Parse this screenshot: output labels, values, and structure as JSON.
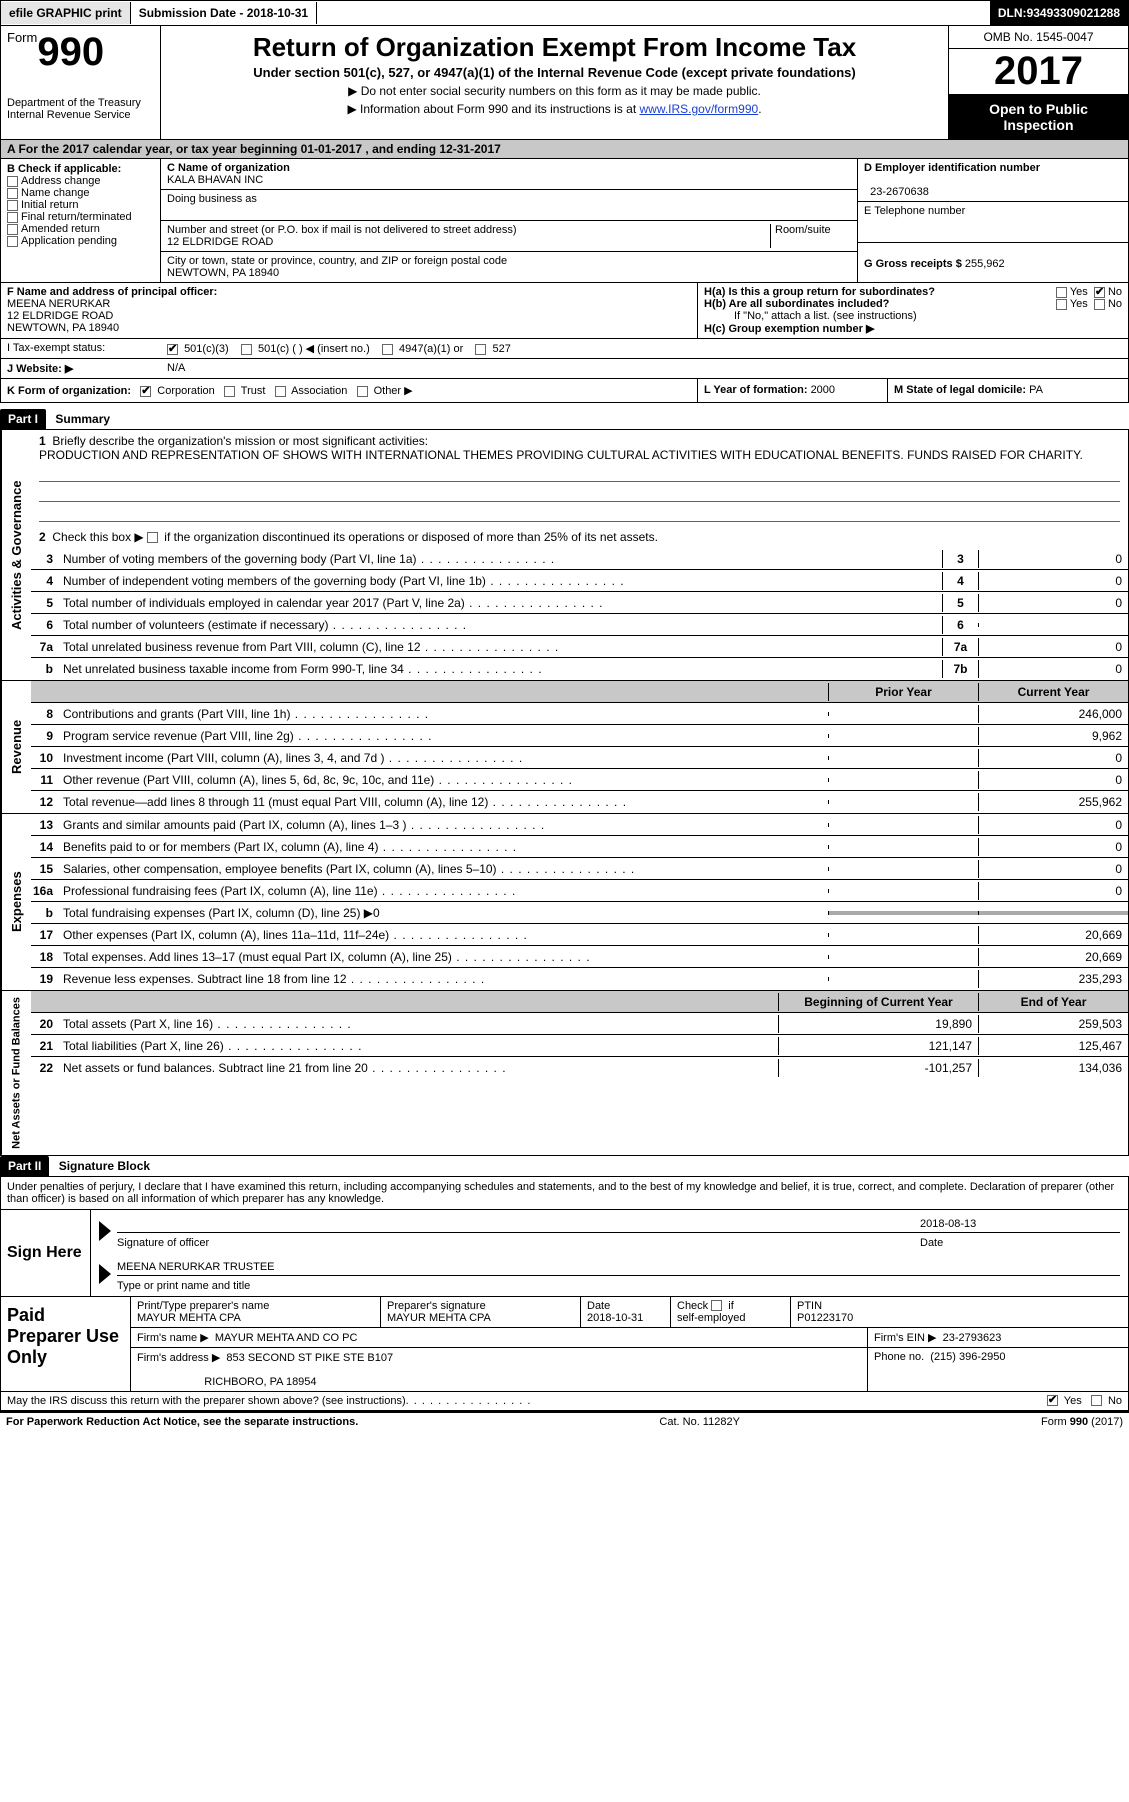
{
  "topbar": {
    "efile": "efile GRAPHIC print",
    "submission_label": "Submission Date - ",
    "submission_date": "2018-10-31",
    "dln_label": "DLN: ",
    "dln": "93493309021288"
  },
  "header": {
    "form_word": "Form",
    "form_num": "990",
    "dept1": "Department of the Treasury",
    "dept2": "Internal Revenue Service",
    "title": "Return of Organization Exempt From Income Tax",
    "subtitle": "Under section 501(c), 527, or 4947(a)(1) of the Internal Revenue Code (except private foundations)",
    "note1": "▶ Do not enter social security numbers on this form as it may be made public.",
    "note2_pre": "▶ Information about Form 990 and its instructions is at ",
    "note2_link": "www.IRS.gov/form990",
    "omb": "OMB No. 1545-0047",
    "year": "2017",
    "open": "Open to Public Inspection"
  },
  "row_a": {
    "text_pre": "A   For the 2017 calendar year, or tax year beginning ",
    "begin": "01-01-2017",
    "mid": "   , and ending ",
    "end": "12-31-2017"
  },
  "col_b": {
    "label": "B Check if applicable:",
    "opts": [
      "Address change",
      "Name change",
      "Initial return",
      "Final return/terminated",
      "Amended return",
      "Application pending"
    ]
  },
  "col_c": {
    "name_label": "C Name of organization",
    "name": "KALA BHAVAN INC",
    "dba_label": "Doing business as",
    "addr_label": "Number and street (or P.O. box if mail is not delivered to street address)",
    "room_label": "Room/suite",
    "addr": "12 ELDRIDGE ROAD",
    "city_label": "City or town, state or province, country, and ZIP or foreign postal code",
    "city": "NEWTOWN, PA  18940"
  },
  "col_d": {
    "ein_label": "D Employer identification number",
    "ein": "23-2670638",
    "tel_label": "E Telephone number",
    "gross_label": "G Gross receipts $ ",
    "gross": "255,962"
  },
  "section_f": {
    "label": "F Name and address of principal officer:",
    "name": "MEENA NERURKAR",
    "addr1": "12 ELDRIDGE ROAD",
    "addr2": "NEWTOWN, PA  18940",
    "ha": "H(a)  Is this a group return for subordinates?",
    "hb": "H(b)  Are all subordinates included?",
    "hb_note": "If \"No,\" attach a list. (see instructions)",
    "hc": "H(c)  Group exemption number ▶",
    "yes": "Yes",
    "no": "No"
  },
  "tax_exempt": {
    "label": "I   Tax-exempt status:",
    "o1": "501(c)(3)",
    "o2": "501(c) (  ) ◀ (insert no.)",
    "o3": "4947(a)(1) or",
    "o4": "527"
  },
  "website": {
    "label": "J   Website: ▶",
    "val": "N/A"
  },
  "row_k": {
    "left_label": "K Form of organization:",
    "opts": [
      "Corporation",
      "Trust",
      "Association",
      "Other ▶"
    ],
    "mid_label": "L Year of formation: ",
    "mid_val": "2000",
    "right_label": "M State of legal domicile: ",
    "right_val": "PA"
  },
  "part1": {
    "hdr": "Part I",
    "title": "Summary",
    "q1_label": "1",
    "q1": "Briefly describe the organization's mission or most significant activities:",
    "q1_text": "PRODUCTION AND REPRESENTATION OF SHOWS WITH INTERNATIONAL THEMES PROVIDING CULTURAL ACTIVITIES WITH EDUCATIONAL BENEFITS. FUNDS RAISED FOR CHARITY.",
    "q2_label": "2",
    "q2": "Check this box ▶       if the organization discontinued its operations or disposed of more than 25% of its net assets."
  },
  "gov_rows": [
    {
      "n": "3",
      "d": "Number of voting members of the governing body (Part VI, line 1a)",
      "c": "3",
      "v": "0"
    },
    {
      "n": "4",
      "d": "Number of independent voting members of the governing body (Part VI, line 1b)",
      "c": "4",
      "v": "0"
    },
    {
      "n": "5",
      "d": "Total number of individuals employed in calendar year 2017 (Part V, line 2a)",
      "c": "5",
      "v": "0"
    },
    {
      "n": "6",
      "d": "Total number of volunteers (estimate if necessary)",
      "c": "6",
      "v": ""
    },
    {
      "n": "7a",
      "d": "Total unrelated business revenue from Part VIII, column (C), line 12",
      "c": "7a",
      "v": "0"
    },
    {
      "n": "b",
      "d": "Net unrelated business taxable income from Form 990-T, line 34",
      "c": "7b",
      "v": "0"
    }
  ],
  "rev_hdr": {
    "prior": "Prior Year",
    "current": "Current Year"
  },
  "rev_rows": [
    {
      "n": "8",
      "d": "Contributions and grants (Part VIII, line 1h)",
      "p": "",
      "c": "246,000"
    },
    {
      "n": "9",
      "d": "Program service revenue (Part VIII, line 2g)",
      "p": "",
      "c": "9,962"
    },
    {
      "n": "10",
      "d": "Investment income (Part VIII, column (A), lines 3, 4, and 7d )",
      "p": "",
      "c": "0"
    },
    {
      "n": "11",
      "d": "Other revenue (Part VIII, column (A), lines 5, 6d, 8c, 9c, 10c, and 11e)",
      "p": "",
      "c": "0"
    },
    {
      "n": "12",
      "d": "Total revenue—add lines 8 through 11 (must equal Part VIII, column (A), line 12)",
      "p": "",
      "c": "255,962"
    }
  ],
  "exp_rows": [
    {
      "n": "13",
      "d": "Grants and similar amounts paid (Part IX, column (A), lines 1–3 )",
      "p": "",
      "c": "0"
    },
    {
      "n": "14",
      "d": "Benefits paid to or for members (Part IX, column (A), line 4)",
      "p": "",
      "c": "0"
    },
    {
      "n": "15",
      "d": "Salaries, other compensation, employee benefits (Part IX, column (A), lines 5–10)",
      "p": "",
      "c": "0"
    },
    {
      "n": "16a",
      "d": "Professional fundraising fees (Part IX, column (A), line 11e)",
      "p": "",
      "c": "0"
    },
    {
      "n": "b",
      "d": "Total fundraising expenses (Part IX, column (D), line 25) ▶0",
      "p": "grey",
      "c": "grey"
    },
    {
      "n": "17",
      "d": "Other expenses (Part IX, column (A), lines 11a–11d, 11f–24e)",
      "p": "",
      "c": "20,669"
    },
    {
      "n": "18",
      "d": "Total expenses. Add lines 13–17 (must equal Part IX, column (A), line 25)",
      "p": "",
      "c": "20,669"
    },
    {
      "n": "19",
      "d": "Revenue less expenses. Subtract line 18 from line 12",
      "p": "",
      "c": "235,293"
    }
  ],
  "net_hdr": {
    "begin": "Beginning of Current Year",
    "end": "End of Year"
  },
  "net_rows": [
    {
      "n": "20",
      "d": "Total assets (Part X, line 16)",
      "p": "19,890",
      "c": "259,503"
    },
    {
      "n": "21",
      "d": "Total liabilities (Part X, line 26)",
      "p": "121,147",
      "c": "125,467"
    },
    {
      "n": "22",
      "d": "Net assets or fund balances. Subtract line 21 from line 20",
      "p": "-101,257",
      "c": "134,036"
    }
  ],
  "part2": {
    "hdr": "Part II",
    "title": "Signature Block",
    "penalties": "Under penalties of perjury, I declare that I have examined this return, including accompanying schedules and statements, and to the best of my knowledge and belief, it is true, correct, and complete. Declaration of preparer (other than officer) is based on all information of which preparer has any knowledge."
  },
  "sign": {
    "label": "Sign Here",
    "sig_officer": "Signature of officer",
    "date_label": "Date",
    "date": "2018-08-13",
    "name": "MEENA NERURKAR  TRUSTEE",
    "name_label": "Type or print name and title"
  },
  "preparer": {
    "label": "Paid Preparer Use Only",
    "r1": {
      "name_lbl": "Print/Type preparer's name",
      "name": "MAYUR MEHTA CPA",
      "sig_lbl": "Preparer's signature",
      "sig": "MAYUR MEHTA CPA",
      "date_lbl": "Date",
      "date": "2018-10-31",
      "check_lbl": "Check         if self-employed",
      "ptin_lbl": "PTIN",
      "ptin": "P01223170"
    },
    "r2": {
      "firm_lbl": "Firm's name      ▶",
      "firm": "MAYUR MEHTA AND CO PC",
      "ein_lbl": "Firm's EIN ▶",
      "ein": "23-2793623"
    },
    "r3": {
      "addr_lbl": "Firm's address ▶",
      "addr": "853 SECOND ST PIKE STE B107",
      "phone_lbl": "Phone no.",
      "phone": "(215) 396-2950"
    },
    "r3b": {
      "city": "RICHBORO, PA   18954"
    }
  },
  "discuss": {
    "text": "May the IRS discuss this return with the preparer shown above? (see instructions)",
    "yes": "Yes",
    "no": "No"
  },
  "footer": {
    "left": "For Paperwork Reduction Act Notice, see the separate instructions.",
    "mid": "Cat. No. 11282Y",
    "right": "Form 990 (2017)"
  },
  "side_labels": {
    "gov": "Activities & Governance",
    "rev": "Revenue",
    "exp": "Expenses",
    "net": "Net Assets or Fund Balances"
  }
}
